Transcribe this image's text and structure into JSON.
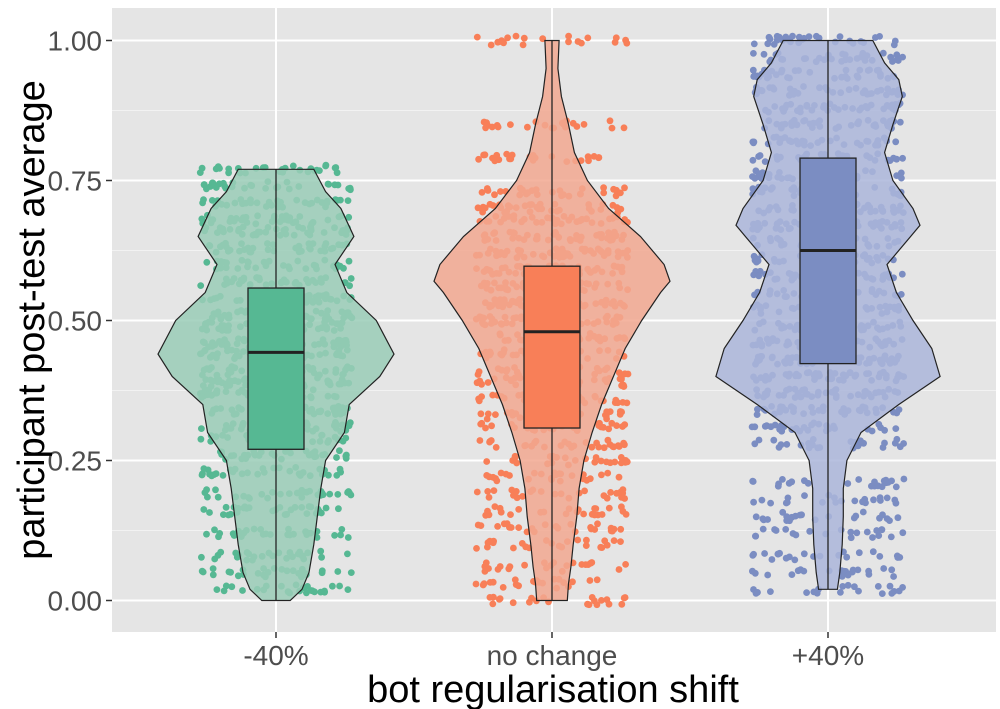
{
  "chart_data": {
    "type": "violin",
    "xlabel": "bot regularisation shift",
    "ylabel": "participant post-test average",
    "ylim": [
      -0.055,
      1.06
    ],
    "yticks": [
      {
        "value": 0.0,
        "label": "0.00"
      },
      {
        "value": 0.25,
        "label": "0.25"
      },
      {
        "value": 0.5,
        "label": "0.50"
      },
      {
        "value": 0.75,
        "label": "0.75"
      },
      {
        "value": 1.0,
        "label": "1.00"
      }
    ],
    "grid": true,
    "categories": [
      "-40%",
      "no change",
      "+40%"
    ],
    "series": [
      {
        "category": "-40%",
        "color": "#56b893",
        "violin_fill": "#9acdb7",
        "data_range": [
          0.0,
          0.77
        ],
        "box": {
          "q1": 0.27,
          "median": 0.443,
          "q3": 0.558
        },
        "density": [
          [
            0.0,
            0.12
          ],
          [
            0.02,
            0.22
          ],
          [
            0.05,
            0.28
          ],
          [
            0.1,
            0.32
          ],
          [
            0.15,
            0.35
          ],
          [
            0.2,
            0.38
          ],
          [
            0.25,
            0.42
          ],
          [
            0.3,
            0.58
          ],
          [
            0.35,
            0.62
          ],
          [
            0.4,
            0.88
          ],
          [
            0.44,
            1.0
          ],
          [
            0.5,
            0.85
          ],
          [
            0.55,
            0.6
          ],
          [
            0.6,
            0.5
          ],
          [
            0.65,
            0.66
          ],
          [
            0.7,
            0.55
          ],
          [
            0.73,
            0.42
          ],
          [
            0.77,
            0.32
          ]
        ],
        "bands": [
          0.02,
          0.05,
          0.08,
          0.12,
          0.16,
          0.19,
          0.23,
          0.26,
          0.29,
          0.31,
          0.34,
          0.37,
          0.39,
          0.41,
          0.44,
          0.46,
          0.49,
          0.51,
          0.54,
          0.57,
          0.6,
          0.63,
          0.66,
          0.68,
          0.71,
          0.74,
          0.77
        ]
      },
      {
        "category": "no change",
        "color": "#f87f58",
        "violin_fill": "#f2a891",
        "data_range": [
          0.0,
          1.0
        ],
        "box": {
          "q1": 0.308,
          "median": 0.48,
          "q3": 0.597
        },
        "density": [
          [
            0.0,
            0.13
          ],
          [
            0.03,
            0.14
          ],
          [
            0.06,
            0.16
          ],
          [
            0.1,
            0.18
          ],
          [
            0.15,
            0.21
          ],
          [
            0.2,
            0.23
          ],
          [
            0.25,
            0.27
          ],
          [
            0.3,
            0.34
          ],
          [
            0.35,
            0.42
          ],
          [
            0.4,
            0.52
          ],
          [
            0.45,
            0.62
          ],
          [
            0.5,
            0.76
          ],
          [
            0.55,
            0.92
          ],
          [
            0.57,
            1.0
          ],
          [
            0.6,
            0.95
          ],
          [
            0.65,
            0.75
          ],
          [
            0.7,
            0.48
          ],
          [
            0.75,
            0.3
          ],
          [
            0.8,
            0.19
          ],
          [
            0.85,
            0.14
          ],
          [
            0.9,
            0.08
          ],
          [
            0.95,
            0.05
          ],
          [
            1.0,
            0.06
          ]
        ],
        "bands": [
          0.0,
          0.03,
          0.06,
          0.1,
          0.13,
          0.16,
          0.19,
          0.22,
          0.25,
          0.28,
          0.31,
          0.33,
          0.36,
          0.39,
          0.41,
          0.44,
          0.47,
          0.5,
          0.53,
          0.56,
          0.59,
          0.62,
          0.65,
          0.68,
          0.7,
          0.73,
          0.79,
          0.85,
          1.0
        ]
      },
      {
        "category": "+40%",
        "color": "#7b8dc2",
        "violin_fill": "#acb6da",
        "data_range": [
          0.02,
          1.0
        ],
        "box": {
          "q1": 0.423,
          "median": 0.625,
          "q3": 0.79
        },
        "density": [
          [
            0.02,
            0.08
          ],
          [
            0.05,
            0.1
          ],
          [
            0.1,
            0.12
          ],
          [
            0.15,
            0.13
          ],
          [
            0.2,
            0.13
          ],
          [
            0.25,
            0.16
          ],
          [
            0.3,
            0.28
          ],
          [
            0.35,
            0.6
          ],
          [
            0.4,
            0.95
          ],
          [
            0.45,
            0.88
          ],
          [
            0.5,
            0.72
          ],
          [
            0.55,
            0.58
          ],
          [
            0.6,
            0.5
          ],
          [
            0.65,
            0.7
          ],
          [
            0.67,
            0.78
          ],
          [
            0.7,
            0.72
          ],
          [
            0.75,
            0.55
          ],
          [
            0.8,
            0.48
          ],
          [
            0.85,
            0.55
          ],
          [
            0.9,
            0.63
          ],
          [
            0.93,
            0.6
          ],
          [
            0.96,
            0.48
          ],
          [
            1.0,
            0.38
          ]
        ],
        "bands": [
          0.02,
          0.05,
          0.08,
          0.12,
          0.15,
          0.18,
          0.21,
          0.28,
          0.31,
          0.34,
          0.37,
          0.4,
          0.43,
          0.46,
          0.49,
          0.52,
          0.55,
          0.58,
          0.61,
          0.64,
          0.67,
          0.7,
          0.73,
          0.76,
          0.79,
          0.82,
          0.85,
          0.88,
          0.91,
          0.94,
          0.97,
          1.0
        ]
      }
    ]
  }
}
